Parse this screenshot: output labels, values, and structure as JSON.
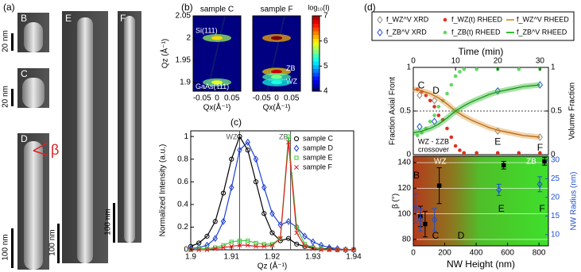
{
  "figure": {
    "panel_labels": [
      "(a)",
      "(b)",
      "(c)",
      "(d)"
    ]
  },
  "sem": {
    "images": [
      {
        "label": "B",
        "scale": "20 nm"
      },
      {
        "label": "C",
        "scale": "20 nm"
      },
      {
        "label": "D",
        "scale": "100 nm"
      },
      {
        "label": "E",
        "scale": "100 nm"
      },
      {
        "label": "F",
        "scale": "100 nm"
      }
    ],
    "angle_label": "β"
  },
  "chart_data": [
    {
      "type": "spot-map",
      "title": "sample C",
      "xlabel": "Qx(Å⁻¹)",
      "ylabel": "Qz (Å⁻¹)",
      "xlim": [
        -0.08,
        0.08
      ],
      "xticks": [
        -0.05,
        0,
        0.05
      ],
      "ylim": [
        1.88,
        2.05
      ],
      "yticks": [
        1.9,
        1.95,
        2,
        2.05
      ],
      "spots": [
        {
          "label": "Si(111)",
          "x": 0,
          "y": 2,
          "value": 6
        },
        {
          "label": "GaAs(111)",
          "x": 0,
          "y": 1.9,
          "value": 5.8
        }
      ]
    },
    {
      "type": "spot-map",
      "title": "sample F",
      "xlabel": "Qx(Å⁻¹)",
      "xlim": [
        -0.08,
        0.08
      ],
      "xticks": [
        -0.05,
        0,
        0.05
      ],
      "ylim": [
        1.88,
        2.05
      ],
      "spots": [
        {
          "x": 0,
          "y": 2,
          "value": 7
        },
        {
          "label": "ZB",
          "x": 0,
          "y": 1.924,
          "value": 6.8
        },
        {
          "label": "WZ",
          "x": 0,
          "y": 1.912,
          "value": 5.5
        },
        {
          "x": 0,
          "y": 1.9,
          "value": 5.2
        }
      ],
      "colorbar": {
        "label": "log₁₀(I)",
        "lim": [
          4,
          7
        ],
        "ticks": [
          4,
          5,
          6,
          7
        ]
      }
    },
    {
      "type": "line",
      "xlabel": "Qz (Å⁻¹)",
      "ylabel": "Normalized Intensity (a.u.)",
      "xlim": [
        1.9,
        1.94
      ],
      "xticks": [
        1.9,
        1.91,
        1.92,
        1.93,
        1.94
      ],
      "ylim": [
        0,
        1.05
      ],
      "yticks": [
        0,
        0.2,
        0.4,
        0.6,
        0.8,
        1
      ],
      "x": [
        1.9,
        1.902,
        1.904,
        1.906,
        1.908,
        1.91,
        1.912,
        1.914,
        1.916,
        1.918,
        1.92,
        1.922,
        1.924,
        1.926,
        1.928,
        1.93,
        1.932,
        1.934,
        1.936,
        1.938,
        1.94
      ],
      "series": [
        {
          "name": "sample C",
          "color": "#000000",
          "marker": "circle",
          "values": [
            0.03,
            0.06,
            0.12,
            0.25,
            0.5,
            0.8,
            1.0,
            0.88,
            0.6,
            0.32,
            0.15,
            0.08,
            0.1,
            0.05,
            0.03,
            0.02,
            0.01,
            0.01,
            0,
            0,
            0
          ]
        },
        {
          "name": "sample D",
          "color": "#1f3fd0",
          "marker": "diamond",
          "values": [
            0.01,
            0.02,
            0.04,
            0.1,
            0.25,
            0.55,
            0.88,
            0.95,
            0.8,
            0.55,
            0.32,
            0.22,
            0.25,
            0.2,
            0.12,
            0.07,
            0.04,
            0.02,
            0.01,
            0,
            0
          ]
        },
        {
          "name": "sample E",
          "color": "#3cc83c",
          "marker": "square",
          "values": [
            0,
            0.01,
            0.01,
            0.02,
            0.04,
            0.07,
            0.08,
            0.08,
            0.06,
            0.05,
            0.05,
            0.1,
            1.0,
            0.2,
            0.05,
            0.02,
            0.01,
            0,
            0,
            0,
            0
          ]
        },
        {
          "name": "sample F",
          "color": "#e02020",
          "marker": "cross",
          "values": [
            0,
            0,
            0,
            0.01,
            0.02,
            0.03,
            0.04,
            0.04,
            0.03,
            0.03,
            0.04,
            0.1,
            0.95,
            0.15,
            0.03,
            0.01,
            0,
            0,
            0,
            0,
            0
          ]
        }
      ],
      "reference_lines": [
        {
          "label": "WZ",
          "x": 1.912
        },
        {
          "label": "ZB",
          "x": 1.9245
        }
      ],
      "legend": "upper right"
    },
    {
      "type": "scatter-line",
      "xlabel": "Time (min)",
      "ylabel": "Fraction Axial Front",
      "y2label": "Volume Fraction",
      "xlim": [
        0,
        32
      ],
      "xticks": [
        0,
        10,
        20,
        30
      ],
      "ylim": [
        0,
        1
      ],
      "yticks": [
        0,
        0.5,
        1
      ],
      "y2lim": [
        0,
        1
      ],
      "y2ticks": [
        0,
        0.5,
        1
      ],
      "hline": 0.5,
      "series": [
        {
          "name": "f_WZ^V XRD",
          "color": "#888888",
          "marker": "diamond",
          "axis": "y2",
          "x": [
            1.5,
            5,
            20,
            30
          ],
          "values": [
            0.68,
            0.62,
            0.27,
            0.2
          ]
        },
        {
          "name": "f_ZB^V XRD",
          "color": "#2050d0",
          "marker": "diamond",
          "axis": "y2",
          "x": [
            1.5,
            5,
            20,
            30
          ],
          "values": [
            0.32,
            0.38,
            0.73,
            0.8
          ]
        },
        {
          "name": "f_WZ(t) RHEED",
          "color": "#e03020",
          "marker": "dot",
          "x": [
            1,
            2,
            3,
            4,
            5,
            6,
            7,
            8,
            9,
            10,
            11,
            12,
            15,
            20,
            25,
            30
          ],
          "values": [
            0.75,
            0.72,
            0.68,
            0.62,
            0.55,
            0.45,
            0.4,
            0.3,
            0.2,
            0.1,
            0.05,
            0.02,
            0.02,
            0.02,
            0.02,
            0.02
          ]
        },
        {
          "name": "f_ZB(t) RHEED",
          "color": "#60d860",
          "marker": "dot",
          "x": [
            1,
            2,
            3,
            4,
            5,
            6,
            7,
            8,
            9,
            10,
            11,
            12,
            15,
            20,
            25,
            30
          ],
          "values": [
            0.22,
            0.25,
            0.3,
            0.38,
            0.45,
            0.55,
            0.62,
            0.7,
            0.8,
            0.9,
            0.95,
            0.98,
            0.98,
            0.98,
            0.98,
            0.98
          ]
        },
        {
          "name": "f_WZ^V RHEED",
          "color": "#e0a040",
          "marker": "line",
          "axis": "y2",
          "x": [
            0,
            2,
            4,
            6,
            8,
            10,
            12,
            14,
            16,
            18,
            20,
            22,
            24,
            26,
            28,
            30
          ],
          "values": [
            0.75,
            0.73,
            0.7,
            0.65,
            0.58,
            0.5,
            0.44,
            0.39,
            0.35,
            0.31,
            0.28,
            0.26,
            0.24,
            0.22,
            0.21,
            0.2
          ]
        },
        {
          "name": "f_ZB^V RHEED",
          "color": "#30c030",
          "marker": "line",
          "axis": "y2",
          "x": [
            0,
            2,
            4,
            6,
            8,
            10,
            12,
            14,
            16,
            18,
            20,
            22,
            24,
            26,
            28,
            30
          ],
          "values": [
            0.25,
            0.27,
            0.3,
            0.35,
            0.42,
            0.5,
            0.56,
            0.61,
            0.65,
            0.69,
            0.72,
            0.74,
            0.76,
            0.78,
            0.79,
            0.8
          ]
        }
      ],
      "point_labels": [
        "C",
        "D",
        "E",
        "F"
      ],
      "annotations": [
        "WZ - ΣZB",
        "crossover"
      ],
      "legend": "top"
    },
    {
      "type": "errorbar",
      "xlabel": "NW Height (nm)",
      "ylabel": "β (°)",
      "y2label": "NW Radius (nm)",
      "xlim": [
        0,
        860
      ],
      "xticks": [
        0,
        200,
        400,
        600,
        800
      ],
      "ylim": [
        75,
        145
      ],
      "yticks": [
        80,
        100,
        120,
        140
      ],
      "y2lim": [
        7,
        31
      ],
      "y2ticks": [
        10,
        15,
        20,
        25,
        30
      ],
      "grid": true,
      "x": [
        30,
        60,
        150,
        560,
        820
      ],
      "series": [
        {
          "color": "#000000",
          "marker": "square",
          "values": [
            98,
            92,
            122,
            138,
            141
          ],
          "errors": [
            8,
            10,
            14,
            3,
            3
          ]
        },
        {
          "color": "#2050d0",
          "marker": "diamond",
          "axis": "y2",
          "values": [
            17,
            14,
            14,
            22,
            23.5
          ],
          "errors": [
            4,
            3,
            3,
            1.5,
            2
          ]
        }
      ],
      "point_labels": [
        "B",
        "C",
        "D",
        "E",
        "F"
      ],
      "region_labels": [
        "WZ",
        "ZB"
      ]
    }
  ]
}
